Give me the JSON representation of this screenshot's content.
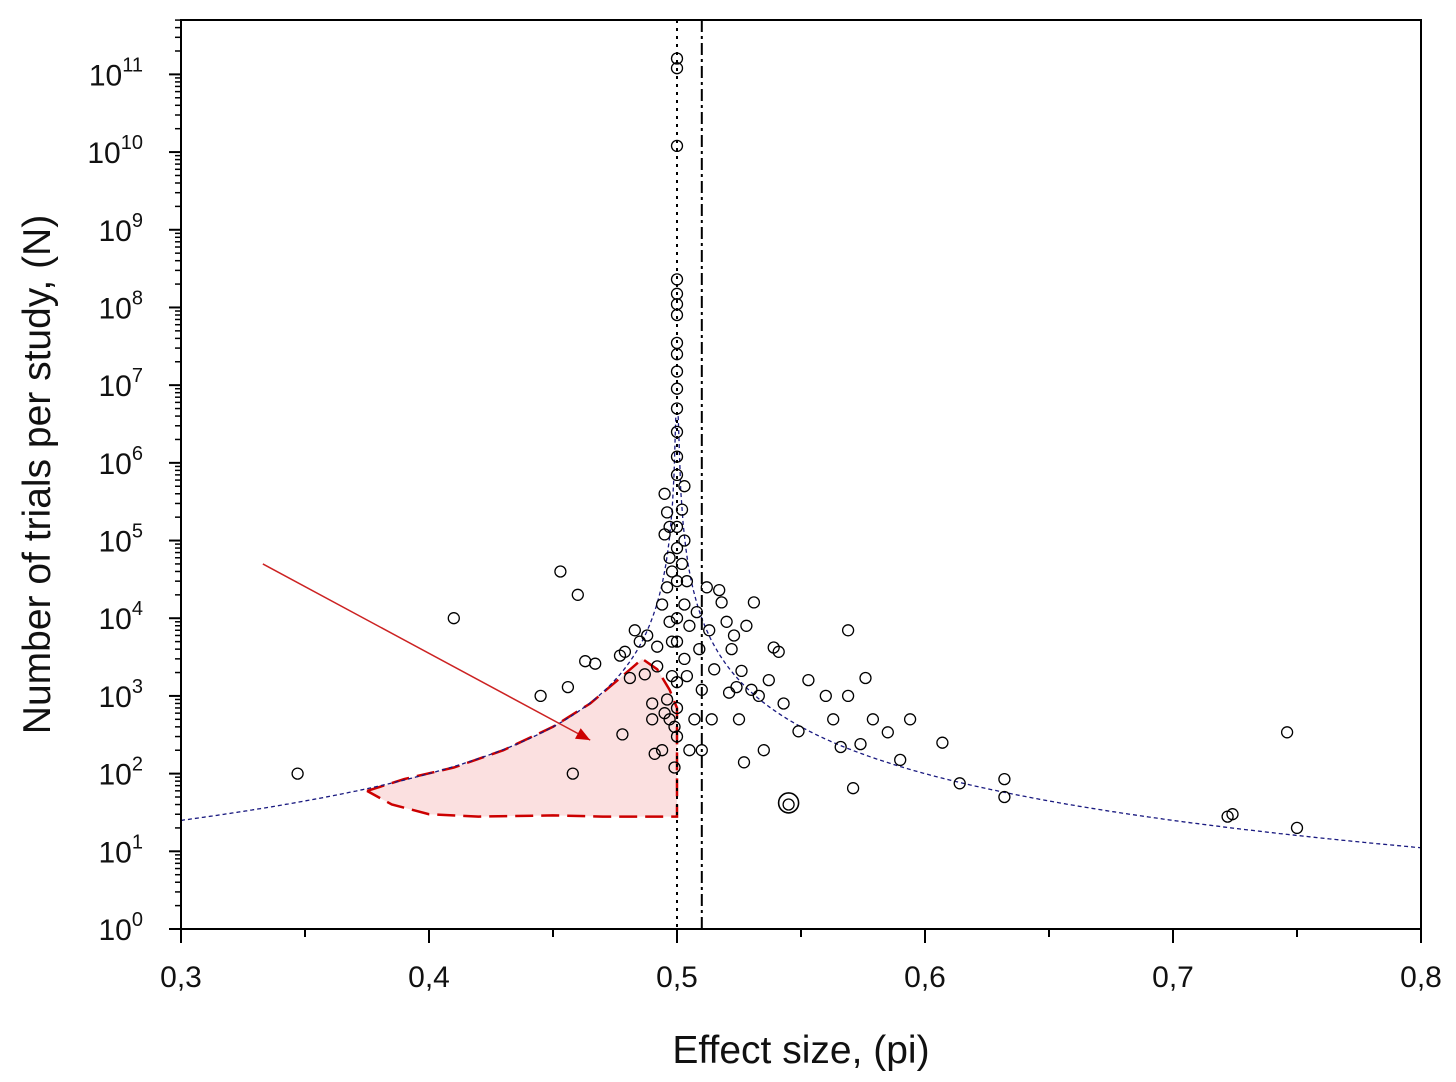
{
  "chart_data": {
    "type": "scatter",
    "title": "",
    "xlabel": "Effect size, (pi)",
    "ylabel": "Number of trials per study, (N)",
    "xlim": [
      0.3,
      0.8
    ],
    "ylim_log10": [
      0,
      11.7
    ],
    "y_scale": "log",
    "x_ticks": [
      0.3,
      0.4,
      0.5,
      0.6,
      0.7,
      0.8
    ],
    "x_tick_labels": [
      "0,3",
      "0,4",
      "0,5",
      "0,6",
      "0,7",
      "0,8"
    ],
    "y_tick_exponents": [
      0,
      1,
      2,
      3,
      4,
      5,
      6,
      7,
      8,
      9,
      10,
      11
    ],
    "y_tick_base": "10",
    "grid": false,
    "legend": "none",
    "colors": {
      "points": "#000000",
      "funnel_curve": "#1a1a80",
      "red_region": "#cc0000",
      "red_fill": "#fbe0e0",
      "arrow": "#cc2222"
    },
    "reference_lines": [
      {
        "x": 0.5,
        "style": "dotted"
      },
      {
        "x": 0.51,
        "style": "dash-dot"
      }
    ],
    "points": [
      [
        0.347,
        100
      ],
      [
        0.41,
        10000
      ],
      [
        0.445,
        1000
      ],
      [
        0.453,
        40000
      ],
      [
        0.456,
        1300
      ],
      [
        0.458,
        100
      ],
      [
        0.46,
        20000
      ],
      [
        0.463,
        2800
      ],
      [
        0.467,
        2600
      ],
      [
        0.477,
        3300
      ],
      [
        0.478,
        320
      ],
      [
        0.479,
        3700
      ],
      [
        0.481,
        1700
      ],
      [
        0.483,
        7000
      ],
      [
        0.485,
        5000
      ],
      [
        0.487,
        1900
      ],
      [
        0.488,
        6000
      ],
      [
        0.49,
        800
      ],
      [
        0.49,
        500
      ],
      [
        0.491,
        180
      ],
      [
        0.492,
        2400
      ],
      [
        0.492,
        4300
      ],
      [
        0.494,
        200
      ],
      [
        0.495,
        600
      ],
      [
        0.496,
        900
      ],
      [
        0.497,
        500
      ],
      [
        0.498,
        1800
      ],
      [
        0.499,
        400
      ],
      [
        0.499,
        120
      ],
      [
        0.5,
        160000000000
      ],
      [
        0.5,
        120000000000
      ],
      [
        0.5,
        12000000000
      ],
      [
        0.5,
        230000000
      ],
      [
        0.5,
        150000000
      ],
      [
        0.5,
        110000000
      ],
      [
        0.5,
        80000000
      ],
      [
        0.5,
        35000000
      ],
      [
        0.5,
        25000000
      ],
      [
        0.5,
        15000000
      ],
      [
        0.5,
        9000000
      ],
      [
        0.5,
        5000000
      ],
      [
        0.5,
        2500000
      ],
      [
        0.5,
        1200000
      ],
      [
        0.5,
        700000
      ],
      [
        0.5,
        150000
      ],
      [
        0.5,
        80000
      ],
      [
        0.5,
        30000
      ],
      [
        0.5,
        10000
      ],
      [
        0.5,
        5000
      ],
      [
        0.5,
        1500
      ],
      [
        0.5,
        700
      ],
      [
        0.5,
        300
      ],
      [
        0.495,
        400000
      ],
      [
        0.496,
        230000
      ],
      [
        0.497,
        150000
      ],
      [
        0.495,
        120000
      ],
      [
        0.497,
        60000
      ],
      [
        0.498,
        40000
      ],
      [
        0.496,
        25000
      ],
      [
        0.494,
        15000
      ],
      [
        0.497,
        9000
      ],
      [
        0.498,
        5000
      ],
      [
        0.503,
        500000
      ],
      [
        0.502,
        250000
      ],
      [
        0.503,
        100000
      ],
      [
        0.502,
        50000
      ],
      [
        0.504,
        30000
      ],
      [
        0.503,
        15000
      ],
      [
        0.505,
        8000
      ],
      [
        0.503,
        3000
      ],
      [
        0.504,
        1800
      ],
      [
        0.505,
        200
      ],
      [
        0.507,
        500
      ],
      [
        0.508,
        12000
      ],
      [
        0.509,
        4000
      ],
      [
        0.51,
        1200
      ],
      [
        0.51,
        200
      ],
      [
        0.512,
        25000
      ],
      [
        0.513,
        7000
      ],
      [
        0.514,
        500
      ],
      [
        0.515,
        2200
      ],
      [
        0.517,
        23000
      ],
      [
        0.518,
        16000
      ],
      [
        0.52,
        9000
      ],
      [
        0.521,
        1100
      ],
      [
        0.522,
        4000
      ],
      [
        0.523,
        6000
      ],
      [
        0.524,
        1300
      ],
      [
        0.525,
        500
      ],
      [
        0.526,
        2100
      ],
      [
        0.527,
        140
      ],
      [
        0.528,
        8000
      ],
      [
        0.53,
        1200
      ],
      [
        0.531,
        16000
      ],
      [
        0.533,
        1000
      ],
      [
        0.535,
        200
      ],
      [
        0.537,
        1600
      ],
      [
        0.539,
        4200
      ],
      [
        0.541,
        3700
      ],
      [
        0.543,
        800
      ],
      [
        0.545,
        40
      ],
      [
        0.549,
        350
      ],
      [
        0.553,
        1600
      ],
      [
        0.56,
        1000
      ],
      [
        0.563,
        500
      ],
      [
        0.566,
        220
      ],
      [
        0.569,
        7000
      ],
      [
        0.569,
        1000
      ],
      [
        0.571,
        65
      ],
      [
        0.574,
        240
      ],
      [
        0.576,
        1700
      ],
      [
        0.579,
        500
      ],
      [
        0.585,
        340
      ],
      [
        0.59,
        150
      ],
      [
        0.594,
        500
      ],
      [
        0.607,
        250
      ],
      [
        0.614,
        75
      ],
      [
        0.632,
        50
      ],
      [
        0.632,
        85
      ],
      [
        0.722,
        28
      ],
      [
        0.724,
        30
      ],
      [
        0.746,
        340
      ],
      [
        0.75,
        20
      ]
    ],
    "large_point": [
      0.545,
      42
    ],
    "arrow": {
      "from": [
        0.333,
        50000
      ],
      "to": [
        0.465,
        270
      ]
    }
  }
}
